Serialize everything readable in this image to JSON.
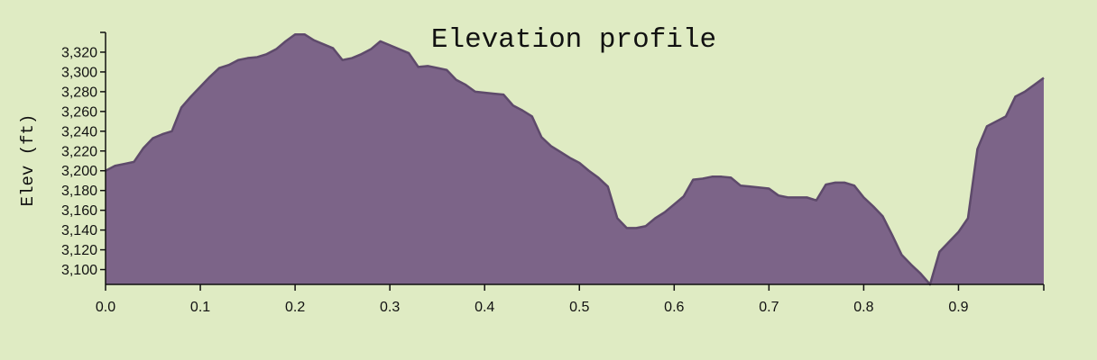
{
  "colors": {
    "background": "#dfebc3",
    "area_fill": "#7c6488",
    "area_stroke": "#5e4a6b",
    "axis": "#111111"
  },
  "chart_data": {
    "type": "area",
    "title": "Elevation profile",
    "xlabel": "",
    "ylabel": "Elev (ft)",
    "xlim": [
      0,
      0.99
    ],
    "ylim": [
      3085,
      3340
    ],
    "x_ticks": [
      0.0,
      0.1,
      0.2,
      0.3,
      0.4,
      0.5,
      0.6,
      0.7,
      0.8,
      0.9
    ],
    "x_tick_labels": [
      "0.0",
      "0.1",
      "0.2",
      "0.3",
      "0.4",
      "0.5",
      "0.6",
      "0.7",
      "0.8",
      "0.9"
    ],
    "y_ticks": [
      3100,
      3120,
      3140,
      3160,
      3180,
      3200,
      3220,
      3240,
      3260,
      3280,
      3300,
      3320
    ],
    "y_tick_labels": [
      "3,100",
      "3,120",
      "3,140",
      "3,160",
      "3,180",
      "3,200",
      "3,220",
      "3,240",
      "3,260",
      "3,280",
      "3,300",
      "3,320"
    ],
    "grid": false,
    "x": [
      0.0,
      0.01,
      0.02,
      0.03,
      0.04,
      0.05,
      0.06,
      0.07,
      0.08,
      0.09,
      0.1,
      0.11,
      0.12,
      0.13,
      0.14,
      0.15,
      0.16,
      0.17,
      0.18,
      0.19,
      0.2,
      0.21,
      0.22,
      0.23,
      0.24,
      0.25,
      0.26,
      0.27,
      0.28,
      0.29,
      0.3,
      0.31,
      0.32,
      0.33,
      0.34,
      0.35,
      0.36,
      0.37,
      0.38,
      0.39,
      0.4,
      0.41,
      0.42,
      0.43,
      0.44,
      0.45,
      0.46,
      0.47,
      0.48,
      0.49,
      0.5,
      0.51,
      0.52,
      0.53,
      0.54,
      0.55,
      0.56,
      0.57,
      0.58,
      0.59,
      0.6,
      0.61,
      0.62,
      0.63,
      0.64,
      0.65,
      0.66,
      0.67,
      0.68,
      0.69,
      0.7,
      0.71,
      0.72,
      0.73,
      0.74,
      0.75,
      0.76,
      0.77,
      0.78,
      0.79,
      0.8,
      0.81,
      0.82,
      0.83,
      0.84,
      0.85,
      0.86,
      0.87,
      0.88,
      0.89,
      0.9,
      0.91,
      0.92,
      0.93,
      0.94,
      0.95,
      0.96,
      0.97,
      0.98,
      0.99
    ],
    "y": [
      3200,
      3205,
      3207,
      3209,
      3223,
      3233,
      3237,
      3240,
      3264,
      3275,
      3285,
      3295,
      3304,
      3307,
      3312,
      3314,
      3315,
      3318,
      3323,
      3331,
      3338,
      3338,
      3332,
      3328,
      3324,
      3312,
      3314,
      3318,
      3323,
      3331,
      3327,
      3323,
      3319,
      3305,
      3306,
      3304,
      3302,
      3292,
      3287,
      3280,
      3279,
      3278,
      3277,
      3266,
      3261,
      3255,
      3234,
      3225,
      3219,
      3213,
      3208,
      3200,
      3193,
      3184,
      3152,
      3142,
      3142,
      3144,
      3152,
      3158,
      3166,
      3174,
      3191,
      3192,
      3194,
      3194,
      3193,
      3185,
      3184,
      3183,
      3182,
      3175,
      3173,
      3173,
      3173,
      3170,
      3186,
      3188,
      3188,
      3185,
      3173,
      3164,
      3154,
      3135,
      3115,
      3105,
      3096,
      3085,
      3118,
      3128,
      3138,
      3152,
      3222,
      3245,
      3250,
      3255,
      3275,
      3280,
      3287,
      3294
    ]
  }
}
